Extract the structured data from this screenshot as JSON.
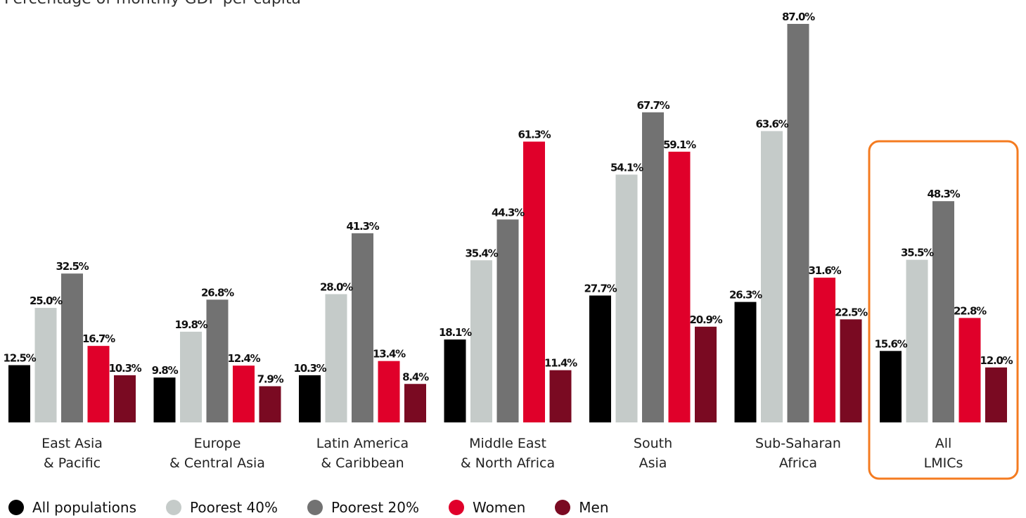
{
  "chart_data": {
    "type": "bar",
    "title": "",
    "subtitle": "Percentage of monthly GDP per capita",
    "xlabel": "",
    "ylabel": "",
    "ylim": [
      0,
      90
    ],
    "grid": false,
    "legend_position": "bottom-left",
    "categories": [
      [
        "East Asia",
        "& Pacific"
      ],
      [
        "Europe",
        "& Central Asia"
      ],
      [
        "Latin America",
        "& Caribbean"
      ],
      [
        "Middle East",
        "& North Africa"
      ],
      [
        "South",
        "Asia"
      ],
      [
        "Sub-Saharan",
        "Africa"
      ],
      [
        "All",
        "LMICs"
      ]
    ],
    "highlighted_category_index": 6,
    "highlight_color": "#f47b20",
    "series": [
      {
        "name": "All populations",
        "color": "#000000",
        "values": [
          12.5,
          9.8,
          10.3,
          18.1,
          27.7,
          26.3,
          15.6
        ],
        "labels": [
          "12.5%",
          "9.8%",
          "10.3%",
          "18.1%",
          "27.7%",
          "26.3%",
          "15.6%"
        ]
      },
      {
        "name": "Poorest 40%",
        "color": "#c5cbc9",
        "values": [
          25.0,
          19.8,
          28.0,
          35.4,
          54.1,
          63.6,
          35.5
        ],
        "labels": [
          "25.0%",
          "19.8%",
          "28.0%",
          "35.4%",
          "54.1%",
          "63.6%",
          "35.5%"
        ]
      },
      {
        "name": "Poorest 20%",
        "color": "#727272",
        "values": [
          32.5,
          26.8,
          41.3,
          44.3,
          67.7,
          87.0,
          48.3
        ],
        "labels": [
          "32.5%",
          "26.8%",
          "41.3%",
          "44.3%",
          "67.7%",
          "87.0%",
          "48.3%"
        ]
      },
      {
        "name": "Women",
        "color": "#e0002a",
        "values": [
          16.7,
          12.4,
          13.4,
          61.3,
          59.1,
          31.6,
          22.8
        ],
        "labels": [
          "16.7%",
          "12.4%",
          "13.4%",
          "61.3%",
          "59.1%",
          "31.6%",
          "22.8%"
        ]
      },
      {
        "name": "Men",
        "color": "#7a0a22",
        "values": [
          10.3,
          7.9,
          8.4,
          11.4,
          20.9,
          22.5,
          12.0
        ],
        "labels": [
          "10.3%",
          "7.9%",
          "8.4%",
          "11.4%",
          "20.9%",
          "22.5%",
          "12.0%"
        ]
      }
    ]
  }
}
